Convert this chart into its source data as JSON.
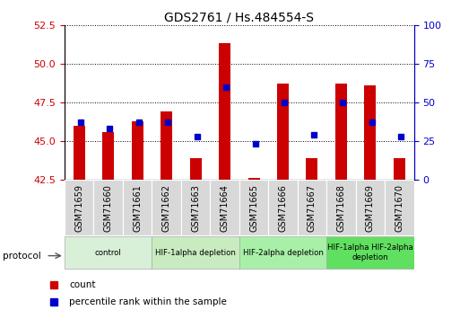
{
  "title": "GDS2761 / Hs.484554-S",
  "samples": [
    "GSM71659",
    "GSM71660",
    "GSM71661",
    "GSM71662",
    "GSM71663",
    "GSM71664",
    "GSM71665",
    "GSM71666",
    "GSM71667",
    "GSM71668",
    "GSM71669",
    "GSM71670"
  ],
  "count_values": [
    46.0,
    45.6,
    46.3,
    46.9,
    43.9,
    51.3,
    42.6,
    48.7,
    43.9,
    48.7,
    48.6,
    43.9
  ],
  "percentile_values": [
    46.2,
    45.8,
    46.2,
    46.2,
    45.3,
    48.5,
    44.8,
    47.5,
    45.4,
    47.5,
    46.2,
    45.3
  ],
  "ylim_left": [
    42.5,
    52.5
  ],
  "ylim_right": [
    0,
    100
  ],
  "yticks_left": [
    42.5,
    45.0,
    47.5,
    50.0,
    52.5
  ],
  "yticks_right": [
    0,
    25,
    50,
    75,
    100
  ],
  "bar_color": "#cc0000",
  "dot_color": "#0000cc",
  "bar_base": 42.5,
  "protocol_groups": [
    {
      "label": "control",
      "start": 0,
      "end": 2,
      "color": "#d8f0d8"
    },
    {
      "label": "HIF-1alpha depletion",
      "start": 3,
      "end": 5,
      "color": "#c8ecc0"
    },
    {
      "label": "HIF-2alpha depletion",
      "start": 6,
      "end": 8,
      "color": "#a8f0a8"
    },
    {
      "label": "HIF-1alpha HIF-2alpha\ndepletion",
      "start": 9,
      "end": 11,
      "color": "#60e060"
    }
  ],
  "left_axis_color": "#cc0000",
  "right_axis_color": "#0000cc",
  "ticklabel_bg": "#d8d8d8",
  "grid_color": "#000000"
}
